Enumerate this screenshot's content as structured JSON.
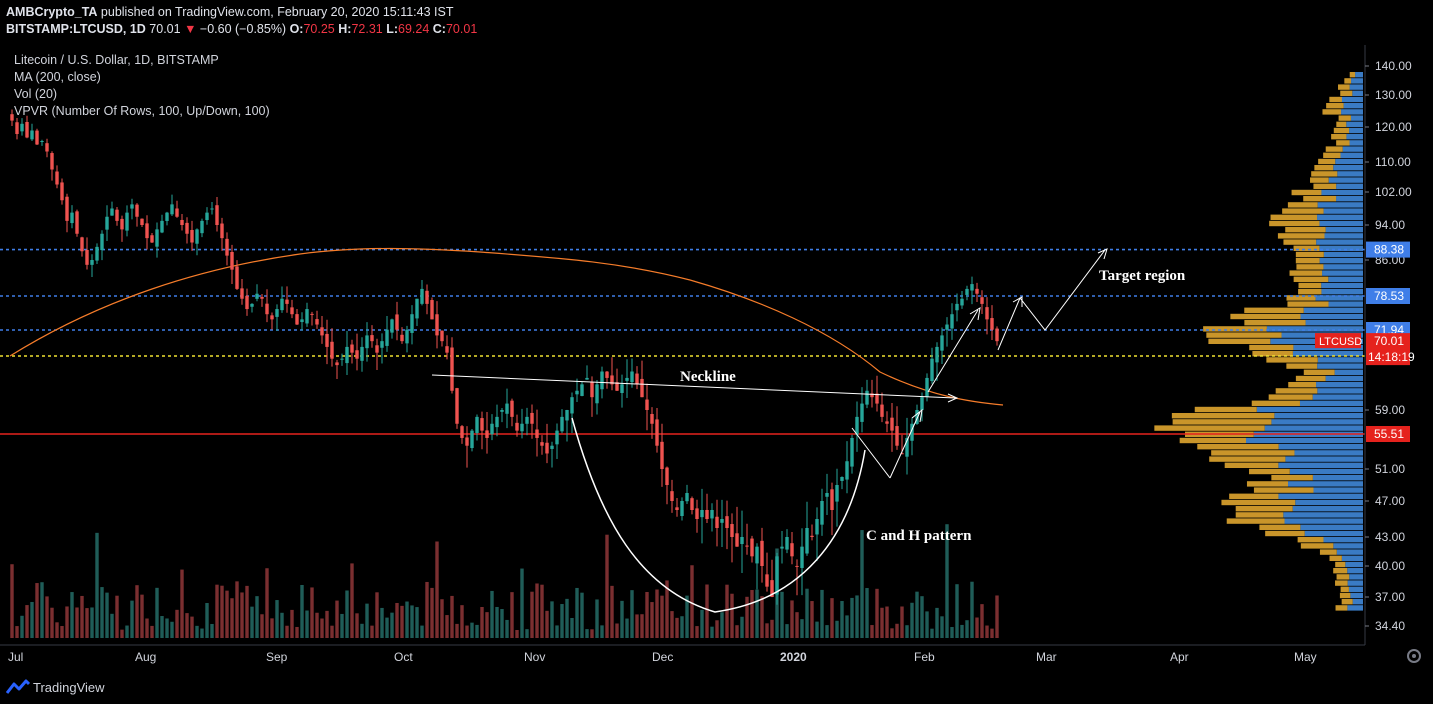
{
  "header": {
    "publisher": "AMBCrypto_TA",
    "published_text": "published on TradingView.com, February 20, 2020 15:11:43 IST",
    "symbol": "BITSTAMP:LTCUSD, 1D",
    "last": "70.01",
    "change": "−0.60 (−0.85%)",
    "o_label": "O:",
    "o": "70.25",
    "h_label": "H:",
    "h": "72.31",
    "l_label": "L:",
    "l": "69.24",
    "c_label": "C:",
    "c": "70.01"
  },
  "legend": {
    "title": "Litecoin / U.S. Dollar, 1D, BITSTAMP",
    "ma": "MA (200, close)",
    "vol": "Vol (20)",
    "vpvr": "VPVR (Number Of Rows, 100, Up/Down, 100)"
  },
  "footer": {
    "brand": "TradingView"
  },
  "colors": {
    "up": "#26a69a",
    "down": "#ef5350",
    "ma": "#f57c2a",
    "blue_level": "#3f7ee8",
    "yellow_level": "#f0e130",
    "red_level": "#e5221d",
    "vp_up": "#3a7bc4",
    "vp_down": "#c9952a",
    "annotation": "#ffffff"
  },
  "chart_data": {
    "type": "candlestick",
    "symbol": "LTCUSD",
    "y_ticks": [
      "140.00",
      "130.00",
      "120.00",
      "110.00",
      "102.00",
      "94.00",
      "86.00",
      "78.53",
      "71.94",
      "70.01",
      "67.42",
      "59.00",
      "55.51",
      "51.00",
      "47.00",
      "43.00",
      "40.00",
      "37.00",
      "34.40"
    ],
    "x_ticks": [
      "Jul",
      "Aug",
      "Sep",
      "Oct",
      "Nov",
      "Dec",
      "2020",
      "Feb",
      "Mar",
      "Apr",
      "May"
    ],
    "levels": [
      {
        "value": 88.38,
        "label": "88.38",
        "style": "dotted",
        "color": "#3f7ee8"
      },
      {
        "value": 78.53,
        "label": "78.53",
        "style": "dotted",
        "color": "#3f7ee8"
      },
      {
        "value": 71.94,
        "label": "71.94",
        "style": "dotted",
        "color": "#3f7ee8"
      },
      {
        "value": 67.42,
        "label": "67.42",
        "style": "dotted",
        "color": "#f0e130"
      },
      {
        "value": 55.51,
        "label": "55.51",
        "style": "solid",
        "color": "#e5221d"
      }
    ],
    "last_price": {
      "symbol": "LTCUSD",
      "value": 70.01,
      "countdown": "14:18:19"
    },
    "annotations": {
      "neckline": "Neckline",
      "pattern": "C and H pattern",
      "target": "Target region"
    },
    "closes": [
      122,
      118,
      121,
      117,
      119,
      115,
      116,
      113,
      108,
      104,
      100,
      95,
      97,
      92,
      88,
      85,
      86,
      89,
      92,
      96,
      98,
      95,
      93,
      97,
      99,
      96,
      94,
      91,
      90,
      93,
      95,
      97,
      99,
      96,
      94,
      92,
      90,
      93,
      95,
      97,
      98,
      94,
      91,
      87,
      84,
      80,
      78,
      76,
      77,
      79,
      78,
      75,
      74,
      76,
      78,
      77,
      75,
      73,
      74,
      76,
      75,
      73,
      71,
      69,
      67,
      66,
      67,
      69,
      68,
      67,
      69,
      71,
      70,
      68,
      70,
      72,
      74,
      72,
      70,
      72,
      75,
      78,
      80,
      77,
      74,
      71,
      70,
      68,
      62,
      57,
      55,
      54,
      56,
      58,
      56,
      55,
      57,
      58,
      59,
      60,
      58,
      56,
      57,
      58,
      57,
      55,
      54,
      53,
      54,
      56,
      58,
      59,
      61,
      62,
      63,
      64,
      61,
      63,
      65,
      64,
      63,
      62,
      63,
      64,
      65,
      63,
      61,
      59,
      57,
      54,
      51,
      49,
      47,
      46,
      47,
      48,
      46,
      45,
      46,
      45,
      46,
      44,
      45,
      44,
      43,
      42,
      43,
      42,
      41,
      42,
      40,
      38,
      37,
      41,
      42,
      43,
      41,
      40,
      42,
      44,
      43,
      45,
      47,
      48,
      46,
      49,
      50,
      52,
      55,
      58,
      60,
      62,
      61,
      60,
      58,
      57,
      56,
      54,
      53,
      55,
      57,
      59,
      61,
      64,
      67,
      69,
      71,
      73,
      75,
      77,
      78,
      80,
      81,
      79,
      77,
      74,
      72,
      70
    ]
  }
}
